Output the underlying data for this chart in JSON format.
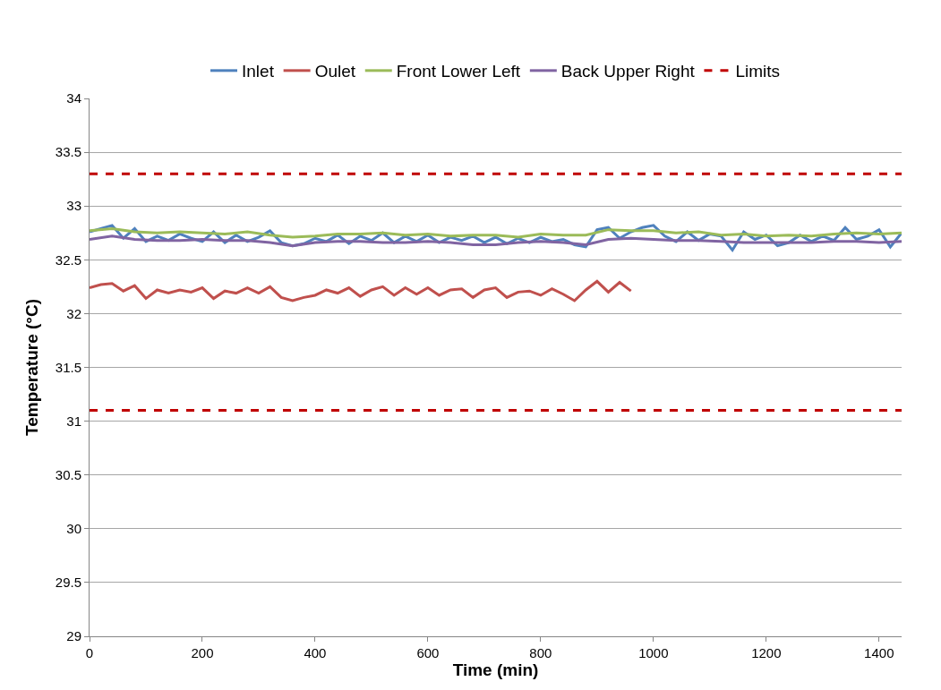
{
  "chart_data": {
    "type": "line",
    "xlabel": "Time (min)",
    "ylabel": "Temperature (°C)",
    "xlim": [
      0,
      1440
    ],
    "xticks": [
      0,
      200,
      400,
      600,
      800,
      1000,
      1200,
      1400
    ],
    "ylim": [
      29,
      34
    ],
    "yticks": [
      29,
      29.5,
      30,
      30.5,
      31,
      31.5,
      32,
      32.5,
      33,
      33.5,
      34
    ],
    "grid": "y",
    "legend": "top",
    "marker": "none",
    "line_style": "solid",
    "series": [
      {
        "name": "Inlet",
        "color": "#4f81bd",
        "x": [
          0,
          20,
          40,
          60,
          80,
          100,
          120,
          140,
          160,
          180,
          200,
          220,
          240,
          260,
          280,
          300,
          320,
          340,
          360,
          380,
          400,
          420,
          440,
          460,
          480,
          500,
          520,
          540,
          560,
          580,
          600,
          620,
          640,
          660,
          680,
          700,
          720,
          740,
          760,
          780,
          800,
          820,
          840,
          860,
          880,
          900,
          920,
          940,
          960,
          980,
          1000,
          1020,
          1040,
          1060,
          1080,
          1100,
          1120,
          1140,
          1160,
          1180,
          1200,
          1220,
          1240,
          1260,
          1280,
          1300,
          1320,
          1340,
          1360,
          1380,
          1400,
          1420,
          1440
        ],
        "values": [
          32.76,
          32.79,
          32.82,
          32.7,
          32.79,
          32.67,
          32.72,
          32.68,
          32.74,
          32.7,
          32.67,
          32.76,
          32.66,
          32.73,
          32.67,
          32.71,
          32.77,
          32.66,
          32.63,
          32.65,
          32.7,
          32.67,
          32.73,
          32.65,
          32.72,
          32.68,
          32.75,
          32.66,
          32.72,
          32.67,
          32.73,
          32.66,
          32.71,
          32.68,
          32.72,
          32.66,
          32.71,
          32.65,
          32.7,
          32.66,
          32.71,
          32.67,
          32.69,
          32.64,
          32.62,
          32.78,
          32.8,
          32.7,
          32.76,
          32.8,
          32.82,
          32.72,
          32.67,
          32.76,
          32.68,
          32.74,
          32.72,
          32.59,
          32.76,
          32.69,
          32.73,
          32.63,
          32.66,
          32.73,
          32.67,
          32.72,
          32.68,
          32.8,
          32.69,
          32.72,
          32.78,
          32.62,
          32.75
        ]
      },
      {
        "name": "Oulet",
        "color": "#c0504d",
        "x": [
          0,
          20,
          40,
          60,
          80,
          100,
          120,
          140,
          160,
          180,
          200,
          220,
          240,
          260,
          280,
          300,
          320,
          340,
          360,
          380,
          400,
          420,
          440,
          460,
          480,
          500,
          520,
          540,
          560,
          580,
          600,
          620,
          640,
          660,
          680,
          700,
          720,
          740,
          760,
          780,
          800,
          820,
          840,
          860,
          880,
          900,
          920,
          940,
          960
        ],
        "values": [
          32.24,
          32.27,
          32.28,
          32.21,
          32.26,
          32.14,
          32.22,
          32.19,
          32.22,
          32.2,
          32.24,
          32.14,
          32.21,
          32.19,
          32.24,
          32.19,
          32.25,
          32.15,
          32.12,
          32.15,
          32.17,
          32.22,
          32.19,
          32.24,
          32.16,
          32.22,
          32.25,
          32.17,
          32.24,
          32.18,
          32.24,
          32.17,
          32.22,
          32.23,
          32.15,
          32.22,
          32.24,
          32.15,
          32.2,
          32.21,
          32.17,
          32.23,
          32.18,
          32.12,
          32.22,
          32.3,
          32.2,
          32.29,
          32.21
        ]
      },
      {
        "name": "Front Lower Left",
        "color": "#9bbb59",
        "x": [
          0,
          40,
          80,
          120,
          160,
          200,
          240,
          280,
          320,
          360,
          400,
          440,
          480,
          520,
          560,
          600,
          640,
          680,
          720,
          760,
          800,
          840,
          880,
          920,
          960,
          1000,
          1040,
          1080,
          1120,
          1160,
          1200,
          1240,
          1280,
          1320,
          1360,
          1400,
          1440
        ],
        "values": [
          32.77,
          32.79,
          32.76,
          32.75,
          32.76,
          32.75,
          32.74,
          32.76,
          32.73,
          32.71,
          32.72,
          32.74,
          32.74,
          32.75,
          32.73,
          32.74,
          32.72,
          32.73,
          32.73,
          32.71,
          32.74,
          32.73,
          32.73,
          32.78,
          32.77,
          32.77,
          32.75,
          32.76,
          32.73,
          32.74,
          32.72,
          32.73,
          32.72,
          32.74,
          32.75,
          32.74,
          32.75
        ]
      },
      {
        "name": "Back Upper Right",
        "color": "#8064a2",
        "x": [
          0,
          40,
          80,
          120,
          160,
          200,
          240,
          280,
          320,
          360,
          400,
          440,
          480,
          520,
          560,
          600,
          640,
          680,
          720,
          760,
          800,
          840,
          880,
          920,
          960,
          1000,
          1040,
          1080,
          1120,
          1160,
          1200,
          1240,
          1280,
          1320,
          1360,
          1400,
          1440
        ],
        "values": [
          32.69,
          32.72,
          32.69,
          32.68,
          32.68,
          32.69,
          32.68,
          32.68,
          32.66,
          32.63,
          32.66,
          32.67,
          32.67,
          32.66,
          32.66,
          32.67,
          32.66,
          32.64,
          32.64,
          32.66,
          32.67,
          32.66,
          32.64,
          32.69,
          32.7,
          32.69,
          32.68,
          32.68,
          32.67,
          32.66,
          32.66,
          32.66,
          32.66,
          32.67,
          32.67,
          32.66,
          32.67
        ]
      }
    ],
    "ref_lines": [
      {
        "axis": "y",
        "value": 33.3,
        "label": "Limits",
        "color": "#c00000",
        "line_style": "dashed"
      },
      {
        "axis": "y",
        "value": 31.1,
        "color": "#c00000",
        "line_style": "dashed"
      }
    ]
  }
}
